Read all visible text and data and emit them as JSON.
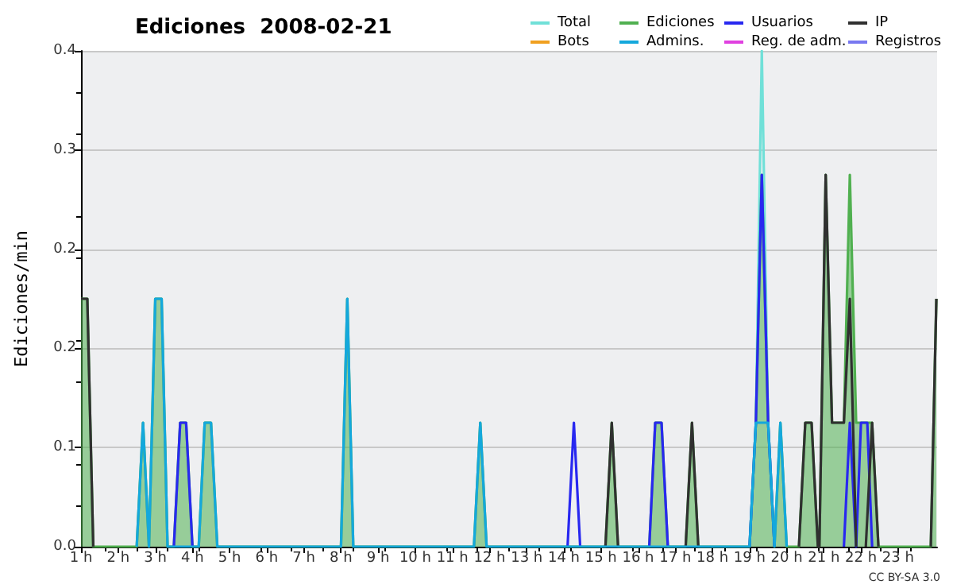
{
  "chart_data": {
    "type": "line",
    "title": "Ediciones  2008-02-21",
    "ylabel": "Ediciones/min",
    "annotations": [
      "CC BY-SA 3.0"
    ],
    "xlim": [
      1,
      24.05
    ],
    "xticks": [
      {
        "value": 1,
        "label": "1 h"
      },
      {
        "value": 2,
        "label": "2 h"
      },
      {
        "value": 3,
        "label": "3 h"
      },
      {
        "value": 4,
        "label": "4 h"
      },
      {
        "value": 5,
        "label": "5 h"
      },
      {
        "value": 6,
        "label": "6 h"
      },
      {
        "value": 7,
        "label": "7 h"
      },
      {
        "value": 8,
        "label": "8 h"
      },
      {
        "value": 9,
        "label": "9 h"
      },
      {
        "value": 10,
        "label": "10 h"
      },
      {
        "value": 11,
        "label": "11 h"
      },
      {
        "value": 12,
        "label": "12 h"
      },
      {
        "value": 13,
        "label": "13 h"
      },
      {
        "value": 14,
        "label": "14 h"
      },
      {
        "value": 15,
        "label": "15 h"
      },
      {
        "value": 16,
        "label": "16 h"
      },
      {
        "value": 17,
        "label": "17 h"
      },
      {
        "value": 18,
        "label": "18 h"
      },
      {
        "value": 19,
        "label": "19 h"
      },
      {
        "value": 20,
        "label": "20 h"
      },
      {
        "value": 21,
        "label": "21 h"
      },
      {
        "value": 22,
        "label": "22 h"
      },
      {
        "value": 23,
        "label": "23 h"
      }
    ],
    "ylim": [
      0,
      0.4
    ],
    "yticks": [
      {
        "value": 0,
        "label": "0.0"
      },
      {
        "value": 0.08,
        "label": "0.1"
      },
      {
        "value": 0.16,
        "label": "0.2"
      },
      {
        "value": 0.24,
        "label": "0.2"
      },
      {
        "value": 0.32,
        "label": "0.3"
      },
      {
        "value": 0.4,
        "label": "0.4"
      }
    ],
    "grid": "y",
    "legend": "top right",
    "marker": "none",
    "series": [
      {
        "name": "Total",
        "color": "#70e0d8",
        "x": [
          19.17,
          19.33,
          19.5
        ],
        "values": [
          0.1,
          0.4,
          0.1
        ]
      },
      {
        "name": "Ediciones",
        "type": "area",
        "color": "#50b050",
        "x": [
          1,
          1.17,
          1.33,
          2.5,
          2.67,
          2.83,
          3.0,
          3.17,
          3.33,
          3.5,
          3.67,
          3.83,
          4.0,
          4.17,
          4.33,
          4.5,
          4.67,
          8.0,
          8.17,
          8.33,
          11.58,
          11.75,
          11.92,
          15.12,
          15.29,
          15.46,
          16.3,
          16.46,
          16.63,
          16.8,
          17.28,
          17.45,
          17.62,
          19.0,
          19.17,
          19.33,
          19.5,
          19.67,
          19.83,
          20.0,
          20.33,
          20.5,
          20.67,
          20.84,
          20.88,
          21.05,
          21.22,
          21.38,
          21.54,
          21.7,
          21.87,
          22.0,
          22.17,
          22.3,
          22.47,
          23.88,
          24.03
        ],
        "values": [
          0.2,
          0.2,
          0,
          0,
          0.1,
          0,
          0.2,
          0.2,
          0,
          0,
          0.1,
          0.1,
          0,
          0,
          0.1,
          0.1,
          0,
          0,
          0.2,
          0,
          0,
          0.1,
          0,
          0,
          0.1,
          0,
          0,
          0.1,
          0.1,
          0,
          0,
          0.1,
          0,
          0,
          0.1,
          0.3,
          0.1,
          0,
          0.1,
          0,
          0,
          0.1,
          0.1,
          0,
          0,
          0.3,
          0.1,
          0.1,
          0.1,
          0.3,
          0.1,
          0.1,
          0.1,
          0.1,
          0,
          0,
          0.2
        ]
      },
      {
        "name": "Usuarios",
        "color": "#2828f0",
        "x": [
          3.5,
          3.67,
          3.83,
          4.0,
          null,
          14.1,
          14.27,
          14.44,
          null,
          16.3,
          16.46,
          16.63,
          16.8,
          null,
          19.0,
          19.17,
          19.33,
          19.5,
          19.67,
          null,
          21.54,
          21.7,
          21.87,
          22.0,
          22.17,
          22.3
        ],
        "values": [
          0,
          0.1,
          0.1,
          0,
          null,
          0,
          0.1,
          0,
          null,
          0,
          0.1,
          0.1,
          0,
          null,
          0,
          0.1,
          0.3,
          0.1,
          0,
          null,
          0,
          0.1,
          0,
          0.1,
          0.1,
          0
        ]
      },
      {
        "name": "IP",
        "color": "#303030",
        "x": [
          1,
          1.17,
          1.33,
          null,
          15.12,
          15.29,
          15.46,
          null,
          17.28,
          17.45,
          17.62,
          null,
          20.33,
          20.5,
          20.67,
          20.84,
          20.88,
          21.05,
          21.22,
          21.54,
          21.7,
          21.87,
          null,
          22.13,
          22.3,
          22.47,
          null,
          23.88,
          24.03
        ],
        "values": [
          0.2,
          0.2,
          0,
          null,
          0,
          0.1,
          0,
          null,
          0,
          0.1,
          0,
          null,
          0,
          0.1,
          0.1,
          0,
          0,
          0.3,
          0.1,
          0.1,
          0.2,
          0,
          null,
          0,
          0.1,
          0,
          null,
          0,
          0.2
        ]
      },
      {
        "name": "Bots",
        "color": "#f0a020"
      },
      {
        "name": "Admins.",
        "color": "#14a8dc",
        "x": [
          2.5,
          2.67,
          2.83,
          3.0,
          3.17,
          3.33,
          4.17,
          4.33,
          4.5,
          4.67,
          8.0,
          8.17,
          8.33,
          11.58,
          11.75,
          11.92,
          19.0,
          19.17,
          19.33,
          19.5,
          19.67,
          19.83,
          20.0
        ],
        "values": [
          0,
          0.1,
          0,
          0.2,
          0.2,
          0,
          0,
          0.1,
          0.1,
          0,
          0,
          0.2,
          0,
          0,
          0.1,
          0,
          0,
          0.1,
          0.1,
          0.1,
          0,
          0.1,
          0
        ]
      },
      {
        "name": "Reg. de adm.",
        "color": "#e040e0"
      },
      {
        "name": "Registros",
        "color": "#7878f0"
      }
    ]
  }
}
